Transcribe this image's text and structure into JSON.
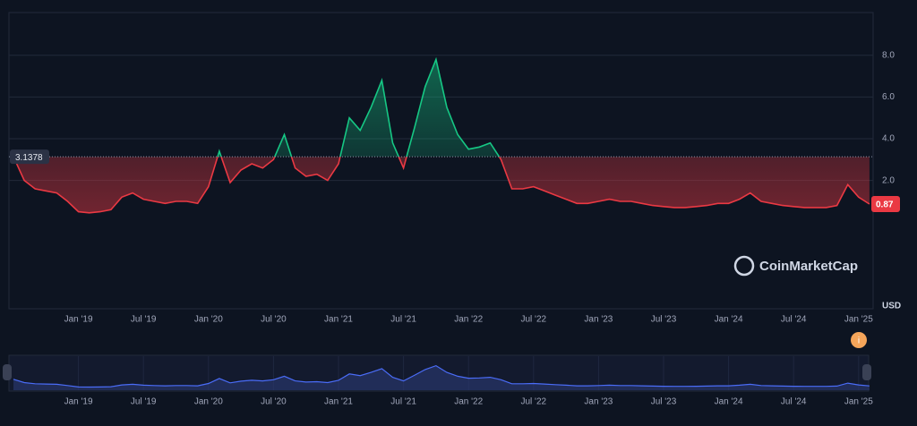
{
  "chart_data": {
    "type": "line",
    "x": [
      null,
      null,
      null,
      null,
      null,
      null,
      "Jan '19",
      null,
      null,
      null,
      null,
      null,
      "Jul '19",
      null,
      null,
      null,
      null,
      null,
      "Jan '20",
      null,
      null,
      null,
      null,
      null,
      "Jul '20",
      null,
      null,
      null,
      null,
      null,
      "Jan '21",
      null,
      null,
      null,
      null,
      null,
      "Jul '21",
      null,
      null,
      null,
      null,
      null,
      "Jan '22",
      null,
      null,
      null,
      null,
      null,
      "Jul '22",
      null,
      null,
      null,
      null,
      null,
      "Jan '23",
      null,
      null,
      null,
      null,
      null,
      "Jul '23",
      null,
      null,
      null,
      null,
      null,
      "Jan '24",
      null,
      null,
      null,
      null,
      null,
      "Jul '24",
      null,
      null,
      null,
      null,
      null,
      "Jan '25",
      null
    ],
    "series": [
      {
        "values": [
          3.14,
          2.0,
          1.6,
          1.5,
          1.4,
          1.0,
          0.5,
          0.45,
          0.5,
          0.6,
          1.2,
          1.4,
          1.1,
          1.0,
          0.9,
          1.0,
          1.0,
          0.9,
          1.7,
          3.4,
          1.9,
          2.5,
          2.8,
          2.6,
          3.0,
          4.2,
          2.6,
          2.2,
          2.3,
          2.0,
          2.8,
          5.0,
          4.4,
          5.5,
          6.8,
          3.8,
          2.6,
          4.5,
          6.5,
          7.8,
          5.5,
          4.2,
          3.5,
          3.6,
          3.8,
          3.0,
          1.6,
          1.6,
          1.7,
          1.5,
          1.3,
          1.1,
          0.9,
          0.9,
          1.0,
          1.1,
          1.0,
          1.0,
          0.9,
          0.8,
          0.75,
          0.7,
          0.7,
          0.75,
          0.8,
          0.9,
          0.9,
          1.1,
          1.4,
          1.0,
          0.9,
          0.8,
          0.75,
          0.7,
          0.7,
          0.7,
          0.8,
          1.8,
          1.2,
          0.87
        ]
      }
    ],
    "baseline": 3.1378,
    "color_above": "#16c784",
    "color_below": "#ea3943",
    "ylim": [
      -4.15,
      10.05
    ],
    "yticks": [
      2.0,
      4.0,
      6.0,
      8.0
    ],
    "ytick_labels": [
      "2.0",
      "4.0",
      "6.0",
      "8.0"
    ],
    "grid": true,
    "currency": "USD",
    "watermark": "CoinMarketCap"
  }
}
